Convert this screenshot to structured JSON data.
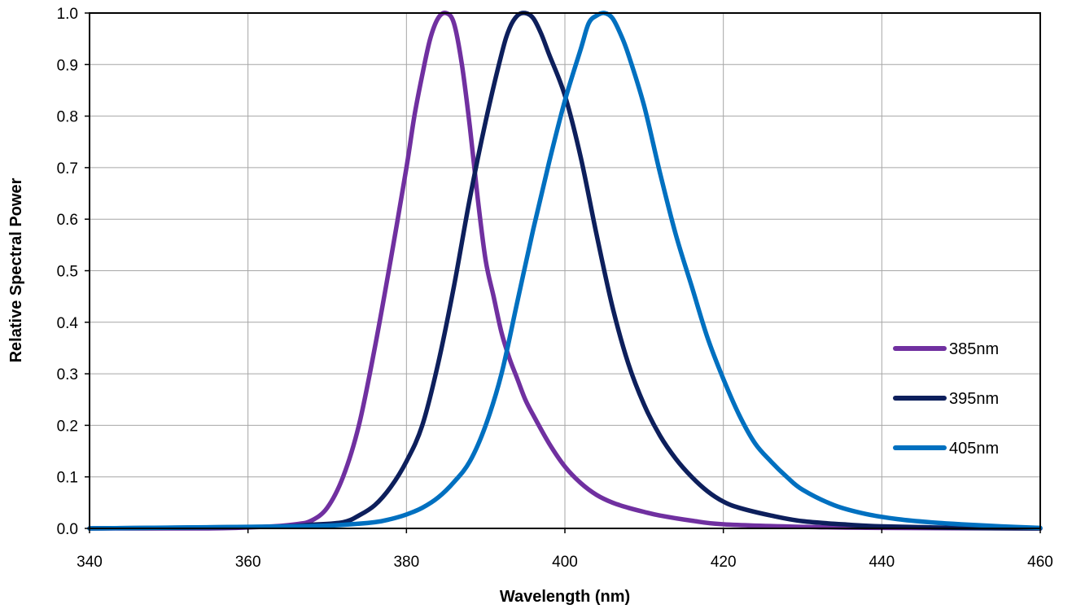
{
  "chart_data": {
    "type": "line",
    "title": "",
    "xlabel": "Wavelength (nm)",
    "ylabel": "Relative Spectral Power",
    "xlim": [
      340,
      460
    ],
    "ylim": [
      0.0,
      1.0
    ],
    "x_ticks": [
      "340",
      "360",
      "380",
      "400",
      "420",
      "440",
      "460"
    ],
    "y_ticks": [
      "0.0",
      "0.1",
      "0.2",
      "0.3",
      "0.4",
      "0.5",
      "0.6",
      "0.7",
      "0.8",
      "0.9",
      "1.0"
    ],
    "grid": true,
    "legend_position": "right",
    "series": [
      {
        "name": "385nm",
        "color": "#7030a0",
        "x": [
          340,
          355,
          362,
          366,
          368,
          370,
          372,
          374,
          376,
          378,
          380,
          381,
          382,
          383,
          384,
          385,
          386,
          387,
          388,
          389,
          390,
          391,
          392,
          393,
          394,
          395,
          396,
          398,
          400,
          402,
          404,
          406,
          408,
          410,
          412,
          416,
          420,
          430,
          440,
          460
        ],
        "y": [
          0.0,
          0.0,
          0.003,
          0.008,
          0.015,
          0.04,
          0.1,
          0.2,
          0.35,
          0.52,
          0.7,
          0.8,
          0.88,
          0.95,
          0.99,
          1.0,
          0.98,
          0.9,
          0.78,
          0.64,
          0.52,
          0.45,
          0.38,
          0.33,
          0.29,
          0.25,
          0.22,
          0.165,
          0.12,
          0.088,
          0.065,
          0.05,
          0.04,
          0.032,
          0.025,
          0.015,
          0.008,
          0.003,
          0.001,
          0.0
        ]
      },
      {
        "name": "395nm",
        "color": "#0d1f5c",
        "x": [
          340,
          362,
          368,
          372,
          374,
          376,
          378,
          380,
          382,
          384,
          386,
          388,
          390,
          392,
          393,
          394,
          395,
          396,
          397,
          398,
          400,
          402,
          404,
          406,
          408,
          410,
          412,
          414,
          416,
          418,
          420,
          422,
          426,
          430,
          436,
          440,
          450,
          460
        ],
        "y": [
          0.0,
          0.003,
          0.007,
          0.012,
          0.025,
          0.045,
          0.08,
          0.13,
          0.2,
          0.32,
          0.47,
          0.64,
          0.79,
          0.92,
          0.97,
          0.995,
          1.0,
          0.99,
          0.96,
          0.92,
          0.84,
          0.72,
          0.57,
          0.43,
          0.32,
          0.24,
          0.18,
          0.135,
          0.1,
          0.072,
          0.052,
          0.04,
          0.025,
          0.014,
          0.007,
          0.004,
          0.001,
          0.0
        ]
      },
      {
        "name": "405nm",
        "color": "#0070c0",
        "x": [
          340,
          366,
          372,
          376,
          378,
          380,
          382,
          384,
          386,
          388,
          390,
          392,
          394,
          396,
          398,
          400,
          402,
          403,
          404,
          405,
          406,
          407,
          408,
          410,
          412,
          414,
          416,
          418,
          420,
          422,
          424,
          426,
          428,
          430,
          434,
          438,
          442,
          446,
          450,
          455,
          460
        ],
        "y": [
          0.0,
          0.004,
          0.007,
          0.012,
          0.018,
          0.027,
          0.04,
          0.06,
          0.09,
          0.13,
          0.2,
          0.3,
          0.44,
          0.58,
          0.71,
          0.83,
          0.93,
          0.98,
          0.995,
          1.0,
          0.99,
          0.96,
          0.92,
          0.82,
          0.69,
          0.57,
          0.47,
          0.37,
          0.29,
          0.22,
          0.165,
          0.13,
          0.1,
          0.075,
          0.045,
          0.028,
          0.018,
          0.012,
          0.008,
          0.004,
          0.001
        ]
      }
    ]
  }
}
